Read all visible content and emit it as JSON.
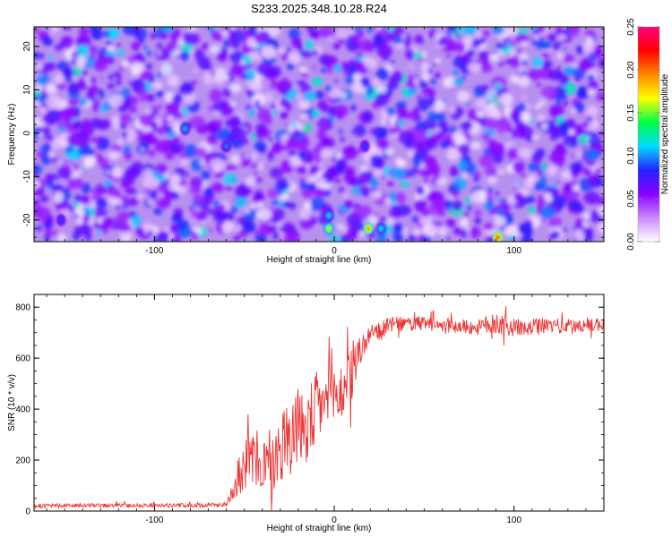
{
  "title": "S233.2025.348.10.28.R24",
  "chart_data": [
    {
      "type": "heatmap",
      "title": "S233.2025.348.10.28.R24",
      "xlabel": "Height of straight line (km)",
      "ylabel": "Frequency (Hz)",
      "xlim": [
        -167,
        150
      ],
      "ylim": [
        -25,
        24.5
      ],
      "xticks": [
        -100,
        0,
        100
      ],
      "xtick_labels": [
        "-100",
        "0",
        "100"
      ],
      "yticks": [
        -20,
        -10,
        0,
        10,
        20
      ],
      "ytick_labels": [
        "-20",
        "-10",
        "0",
        "10",
        "20"
      ],
      "colorbar": {
        "label": "Normalized spectral amplitude",
        "range": [
          0,
          0.25
        ],
        "ticks": [
          0,
          0.05,
          0.1,
          0.15,
          0.2,
          0.25
        ],
        "tick_labels": [
          "0.00",
          "0.05",
          "0.10",
          "0.15",
          "0.20",
          "0.25"
        ],
        "colors": [
          "#ffffff",
          "#cc88ff",
          "#8800ff",
          "#2222ff",
          "#00ddff",
          "#00ff44",
          "#ffff00",
          "#ff8800",
          "#ff0000",
          "#ff0080"
        ]
      },
      "background_level": 0.03,
      "peaks": [
        {
          "x": -3,
          "y": -22,
          "value": 0.17
        },
        {
          "x": -3,
          "y": -19,
          "value": 0.12
        },
        {
          "x": 19,
          "y": -22,
          "value": 0.2
        },
        {
          "x": 26,
          "y": -22,
          "value": 0.12
        },
        {
          "x": 91,
          "y": -24,
          "value": 0.22
        },
        {
          "x": -83,
          "y": 1,
          "value": 0.11
        },
        {
          "x": -60,
          "y": -3,
          "value": 0.1
        },
        {
          "x": 17,
          "y": -3,
          "value": 0.09
        },
        {
          "x": -152,
          "y": -20,
          "value": 0.09
        },
        {
          "x": -55,
          "y": 0,
          "value": 0.09
        }
      ]
    },
    {
      "type": "line",
      "xlabel": "Height of straight line (km)",
      "ylabel": "SNR (10 * v/v)",
      "xlim": [
        -167,
        150
      ],
      "ylim": [
        0,
        850
      ],
      "xticks": [
        -100,
        0,
        100
      ],
      "xtick_labels": [
        "-100",
        "0",
        "100"
      ],
      "yticks": [
        0,
        200,
        400,
        600,
        800
      ],
      "ytick_labels": [
        "0",
        "200",
        "400",
        "600",
        "800"
      ],
      "color": "#ee3333",
      "x": [
        -167,
        -140,
        -120,
        -100,
        -80,
        -60,
        -55,
        -50,
        -45,
        -40,
        -35,
        -30,
        -25,
        -20,
        -15,
        -10,
        -5,
        0,
        5,
        10,
        15,
        20,
        25,
        30,
        40,
        50,
        60,
        80,
        90,
        100,
        110,
        120,
        130,
        140,
        150
      ],
      "y": [
        20,
        22,
        22,
        22,
        22,
        25,
        110,
        180,
        200,
        190,
        160,
        250,
        300,
        330,
        320,
        400,
        430,
        450,
        470,
        540,
        640,
        690,
        700,
        730,
        735,
        735,
        730,
        720,
        740,
        720,
        720,
        730,
        725,
        730,
        735
      ],
      "noise_amplitude": [
        8,
        8,
        8,
        8,
        8,
        8,
        60,
        100,
        120,
        120,
        120,
        140,
        160,
        160,
        150,
        150,
        130,
        120,
        120,
        110,
        60,
        40,
        40,
        30,
        30,
        30,
        30,
        30,
        45,
        35,
        35,
        30,
        30,
        30,
        30
      ]
    }
  ]
}
